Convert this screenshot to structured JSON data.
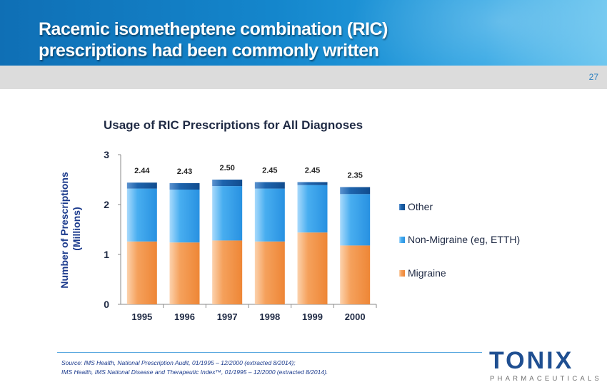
{
  "slide": {
    "title_line1": "Racemic isometheptene combination (RIC)",
    "title_line2": "prescriptions had been commonly written",
    "page_number": "27"
  },
  "chart_data": {
    "type": "bar",
    "stacked": true,
    "title": "Usage of RIC Prescriptions for All Diagnoses",
    "xlabel": "",
    "ylabel_line1": "Number of Prescriptions",
    "ylabel_line2": "(Millions)",
    "ylim": [
      0,
      3
    ],
    "yticks": [
      0,
      1,
      2,
      3
    ],
    "categories": [
      "1995",
      "1996",
      "1997",
      "1998",
      "1999",
      "2000"
    ],
    "series": [
      {
        "name": "Migraine",
        "color": "#f39a4e",
        "values": [
          1.26,
          1.24,
          1.28,
          1.26,
          1.44,
          1.18
        ]
      },
      {
        "name": "Non-Migraine (eg, ETTH)",
        "color": "#3fa2ec",
        "values": [
          1.06,
          1.06,
          1.09,
          1.06,
          0.95,
          1.03
        ]
      },
      {
        "name": "Other",
        "color": "#1b5fa8",
        "values": [
          0.12,
          0.13,
          0.13,
          0.13,
          0.06,
          0.14
        ]
      }
    ],
    "totals": [
      "2.44",
      "2.43",
      "2.50",
      "2.45",
      "2.45",
      "2.35"
    ],
    "legend": "right",
    "grid": false
  },
  "footer": {
    "source_line1": "Source: IMS Health, National Prescription Audit, 01/1995 – 12/2000 (extracted 8/2014);",
    "source_line2": "IMS Health, IMS National Disease and Therapeutic Index™, 01/1995 – 12/2000 (extracted 8/2014)."
  },
  "logo": {
    "word": "TONIX",
    "sub": "PHARMACEUTICALS"
  }
}
